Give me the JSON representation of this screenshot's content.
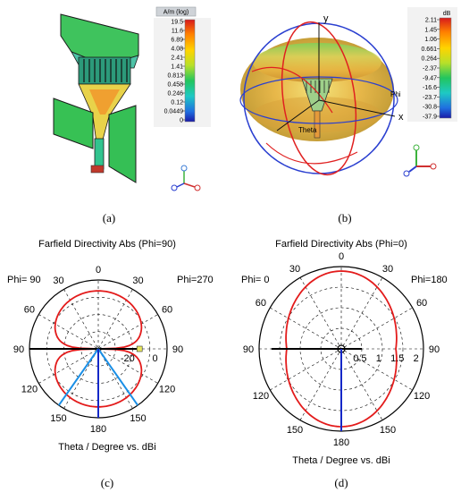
{
  "panel_a": {
    "caption": "(a)",
    "legend_title": "A/m (log)",
    "legend_ticks": [
      "19.5",
      "11.6",
      "6.89",
      "4.08",
      "2.41",
      "1.41",
      "0.813",
      "0.458",
      "0.246",
      "0.12",
      "0.0449",
      "0"
    ]
  },
  "panel_b": {
    "caption": "(b)",
    "legend_title": "dB",
    "legend_ticks": [
      "2.11",
      "1.45",
      "1.06",
      "0.661",
      "0.264",
      "-2.37",
      "-9.47",
      "-16.6",
      "-23.7",
      "-30.8",
      "-37.9"
    ],
    "axis_y": "y",
    "axis_x": "x",
    "label_phi": "Phi",
    "label_theta": "Theta"
  },
  "panel_c": {
    "caption": "(c)"
  },
  "panel_d": {
    "caption": "(d)"
  },
  "colors": {
    "pattern": "#e31b1b",
    "beam_blue": "#1a8fe6",
    "axis_blue": "#1428c8",
    "grid": "#000000",
    "legend_stops": [
      "#d7191c",
      "#ff7f00",
      "#ffd400",
      "#b7e02a",
      "#22c55e",
      "#1ec9c4",
      "#1f6fe0",
      "#1a1aa8"
    ]
  },
  "chart_data": [
    {
      "type": "polar",
      "title": "Farfield Directivity Abs (Phi=90)",
      "xlabel": "Theta / Degree vs. dBi",
      "left_label": "Phi= 90",
      "right_label": "Phi=270",
      "angle_ticks": [
        "0",
        "30",
        "60",
        "90",
        "120",
        "150",
        "180",
        "150",
        "120",
        "90",
        "60",
        "30"
      ],
      "radial_ticks": [
        "-20",
        "0"
      ],
      "rlim": [
        -40,
        10
      ],
      "shape": "figure-eight",
      "lobe_directions_deg": [
        0,
        180
      ],
      "main_beam_deg": 180,
      "beam_lines_deg": [
        145,
        215
      ],
      "max_value": 2.1
    },
    {
      "type": "polar",
      "title": "Farfield Directivity Abs (Phi=0)",
      "xlabel": "Theta / Degree vs. dBi",
      "left_label": "Phi=  0",
      "right_label": "Phi=180",
      "angle_ticks": [
        "0",
        "30",
        "60",
        "90",
        "120",
        "150",
        "180",
        "150",
        "120",
        "90",
        "60",
        "30"
      ],
      "radial_ticks": [
        "0.5",
        "1",
        "1.5",
        "2"
      ],
      "rlim": [
        0,
        2.2
      ],
      "shape": "near-omnidirectional",
      "main_beam_deg": 180,
      "max_value": 2.1
    }
  ]
}
